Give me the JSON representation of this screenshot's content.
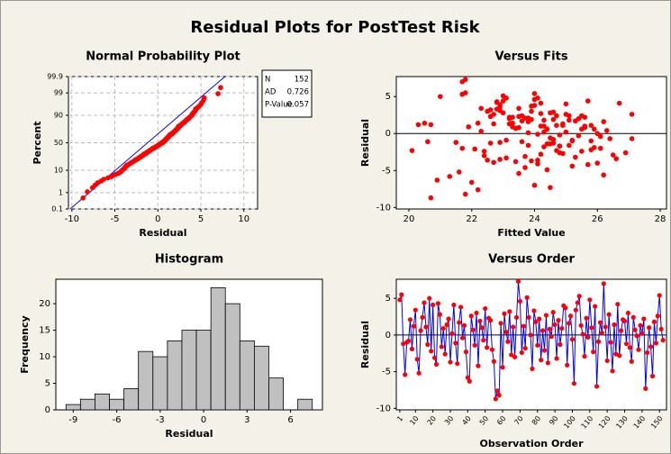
{
  "title": "Residual Plots for PostTest Risk",
  "chart_data": [
    {
      "type": "probability",
      "title": "Normal Probability Plot",
      "xlabel": "Residual",
      "ylabel": "Percent",
      "color": "#ff0000",
      "grid": true,
      "xlim": [
        -10.4,
        11.6
      ],
      "xticks": [
        -10,
        -5,
        0,
        5,
        10
      ],
      "ylim": [
        0.1,
        99.9
      ],
      "yticks": [
        0.1,
        1,
        10,
        50,
        90,
        99,
        99.9
      ],
      "fit_line": {
        "x": [
          -10.2,
          7.8
        ],
        "y": [
          0.1,
          99.9
        ],
        "color": "#0000ff"
      },
      "stats": [
        {
          "label": "N",
          "value": 152
        },
        {
          "label": "AD",
          "value": 0.726
        },
        {
          "label": "P-Value",
          "value": 0.057
        }
      ],
      "x": [
        -8.7,
        -8.2,
        -7.6,
        -7.3,
        -7.0,
        -6.6,
        -6.3,
        -5.8,
        -5.4,
        -5.2,
        -4.9,
        -4.6,
        -4.4,
        -4.3,
        -4.2,
        -4.1,
        -4.0,
        -3.9,
        -3.8,
        -3.8,
        -3.7,
        -3.6,
        -3.6,
        -3.4,
        -3.3,
        -3.2,
        -3.1,
        -3.0,
        -2.9,
        -2.8,
        -2.7,
        -2.6,
        -2.6,
        -2.4,
        -2.3,
        -2.3,
        -2.2,
        -2.1,
        -2.0,
        -2.0,
        -1.9,
        -1.8,
        -1.7,
        -1.7,
        -1.6,
        -1.6,
        -1.4,
        -1.4,
        -1.3,
        -1.3,
        -1.2,
        -1.1,
        -1.1,
        -1.0,
        -0.9,
        -0.9,
        -0.8,
        -0.7,
        -0.7,
        -0.6,
        -0.6,
        -0.4,
        -0.4,
        -0.3,
        -0.2,
        -0.2,
        -0.1,
        0.0,
        0.0,
        0.1,
        0.2,
        0.2,
        0.3,
        0.3,
        0.4,
        0.4,
        0.6,
        0.6,
        0.6,
        0.7,
        0.7,
        0.8,
        0.8,
        0.9,
        0.9,
        0.9,
        1.0,
        1.0,
        1.1,
        1.1,
        1.1,
        1.2,
        1.2,
        1.3,
        1.3,
        1.3,
        1.4,
        1.4,
        1.4,
        1.6,
        1.6,
        1.7,
        1.7,
        1.8,
        1.8,
        1.9,
        1.9,
        2.0,
        2.0,
        2.1,
        2.1,
        2.2,
        2.2,
        2.3,
        2.3,
        2.4,
        2.4,
        2.4,
        2.4,
        2.6,
        2.6,
        2.7,
        2.8,
        2.8,
        2.9,
        3.0,
        3.1,
        3.1,
        3.2,
        3.3,
        3.4,
        3.4,
        3.6,
        3.6,
        3.7,
        3.8,
        3.9,
        4.0,
        4.0,
        4.1,
        4.2,
        4.3,
        4.4,
        4.4,
        4.6,
        4.8,
        5.0,
        5.1,
        5.3,
        5.4,
        7.0,
        7.3
      ],
      "y": [
        0.5,
        1.1,
        1.8,
        2.4,
        3.1,
        3.7,
        4.4,
        5.1,
        5.7,
        6.4,
        7.0,
        7.7,
        8.3,
        9.0,
        9.6,
        10.3,
        11.0,
        11.6,
        12.3,
        12.9,
        13.6,
        14.2,
        14.9,
        15.6,
        16.2,
        16.9,
        17.5,
        18.2,
        18.8,
        19.5,
        20.1,
        20.8,
        21.5,
        22.1,
        22.8,
        23.4,
        24.1,
        24.7,
        25.4,
        26.1,
        26.7,
        27.4,
        28.0,
        28.7,
        29.3,
        30.0,
        30.6,
        31.3,
        32.0,
        32.6,
        33.3,
        33.9,
        34.6,
        35.2,
        35.9,
        36.5,
        37.2,
        37.9,
        38.5,
        39.2,
        39.8,
        40.5,
        41.1,
        41.8,
        42.5,
        43.1,
        43.8,
        44.4,
        45.1,
        45.7,
        46.4,
        47.0,
        47.7,
        48.4,
        49.0,
        49.7,
        50.3,
        51.0,
        51.6,
        52.3,
        53.0,
        53.6,
        54.3,
        54.9,
        55.6,
        56.2,
        56.9,
        57.5,
        58.2,
        58.9,
        59.5,
        60.2,
        60.8,
        61.5,
        62.1,
        62.8,
        63.4,
        64.1,
        64.8,
        65.4,
        66.1,
        66.7,
        67.4,
        68.0,
        68.7,
        69.4,
        70.0,
        70.7,
        71.3,
        72.0,
        72.6,
        73.3,
        73.9,
        74.6,
        75.3,
        75.9,
        76.6,
        77.2,
        77.9,
        78.5,
        79.2,
        79.8,
        80.5,
        81.2,
        81.8,
        82.5,
        83.1,
        83.8,
        84.4,
        85.1,
        85.8,
        86.4,
        87.1,
        87.7,
        88.4,
        89.0,
        89.7,
        90.3,
        91.0,
        91.7,
        92.3,
        93.0,
        93.6,
        94.3,
        94.9,
        95.6,
        96.3,
        96.9,
        97.6,
        98.2,
        98.9,
        99.5
      ]
    },
    {
      "type": "scatter",
      "title": "Versus Fits",
      "xlabel": "Fitted Value",
      "ylabel": "Residual",
      "color": "#ff0000",
      "refline": 0,
      "xlim": [
        19.6,
        28.2
      ],
      "xticks": [
        20,
        22,
        24,
        26,
        28
      ],
      "ylim": [
        -10.2,
        7.7
      ],
      "yticks": [
        -10,
        -5,
        0,
        5
      ],
      "x": [
        24.1,
        21.8,
        22.9,
        23.5,
        25.2,
        24.6,
        23.8,
        25.9,
        20.7,
        22.3,
        23.1,
        21.6,
        24.4,
        25.5,
        23.0,
        24.9,
        22.6,
        21.0,
        25.8,
        24.2,
        23.7,
        26.0,
        22.8,
        24.5,
        25.1,
        23.3,
        24.8,
        22.2,
        25.6,
        23.9,
        24.3,
        26.7,
        23.6,
        22.7,
        25.3,
        24.0,
        26.1,
        23.2,
        24.7,
        21.3,
        20.9,
        25.0,
        23.4,
        24.5,
        22.5,
        25.7,
        23.9,
        24.2,
        26.4,
        22.9,
        24.8,
        23.5,
        25.4,
        21.7,
        24.1,
        20.7,
        22.2,
        21.8,
        23.8,
        25.2,
        24.6,
        26.3,
        23.1,
        22.6,
        24.9,
        25.8,
        22.4,
        23.6,
        21.8,
        24.0,
        25.5,
        20.3,
        24.3,
        23.0,
        24.7,
        26.0,
        23.7,
        22.8,
        25.1,
        24.4,
        23.3,
        26.6,
        25.9,
        22.1,
        24.2,
        23.4,
        25.6,
        24.8,
        22.9,
        20.5,
        25.3,
        23.2,
        24.6,
        21.9,
        25.0,
        23.9,
        24.1,
        26.2,
        22.7,
        24.5,
        22.0,
        23.5,
        25.7,
        21.7,
        24.9,
        23.8,
        26.5,
        22.6,
        25.4,
        23.1,
        24.3,
        20.1,
        22.9,
        24.0,
        25.2,
        23.6,
        22.3,
        21.7,
        24.7,
        22.9,
        23.0,
        25.8,
        24.4,
        23.3,
        26.9,
        22.8,
        24.2,
        25.5,
        23.7,
        24.6,
        21.5,
        23.9,
        24.8,
        22.5,
        25.1,
        23.4,
        24.1,
        26.1,
        22.7,
        25.0,
        23.2,
        24.5,
        22.4,
        25.6,
        23.8,
        26.2,
        24.3,
        20.6,
        27.1,
        24.0,
        23.5,
        27.1
      ],
      "values": [
        4.8,
        5.5,
        -1.2,
        -5.4,
        -1.0,
        -0.8,
        2.1,
        -1.9,
        1.2,
        3.4,
        -3.3,
        -5.2,
        0.6,
        2.4,
        4.4,
        1.1,
        -1.3,
        5.0,
        -2.2,
        4.1,
        -3.1,
        -4.0,
        4.3,
        2.8,
        -1.6,
        0.9,
        -2.6,
        1.4,
        2.2,
        -3.7,
        0.2,
        4.1,
        -1.1,
        -3.9,
        1.7,
        3.8,
        -0.4,
        1.3,
        -2.3,
        -5.8,
        -6.3,
        2.6,
        0.7,
        -1.4,
        3.0,
        -4.2,
        1.9,
        1.0,
        -0.7,
        3.6,
        -1.7,
        2.3,
        2.0,
        -2.0,
        -3.6,
        -8.7,
        -7.6,
        -8.2,
        1.6,
        -4.4,
        2.9,
        0.4,
        -0.9,
        3.2,
        -2.7,
        1.1,
        -3.0,
        2.4,
        7.3,
        4.6,
        -2.4,
        1.2,
        -1.8,
        5.1,
        2.4,
        0.0,
        -4.6,
        3.3,
        1.8,
        -1.4,
        2.2,
        -3.4,
        0.6,
        -2.1,
        2.7,
        -3.8,
        0.8,
        -0.2,
        3.1,
        1.4,
        -3.2,
        2.0,
        -1.3,
        0.9,
        4.0,
        3.7,
        -4.1,
        1.6,
        2.6,
        -0.6,
        -6.6,
        3.4,
        4.4,
        5.3,
        1.3,
        0.1,
        -2.9,
        2.3,
        -0.3,
        4.8,
        1.0,
        -2.3,
        3.9,
        -7.0,
        -0.9,
        1.7,
        0.3,
        7.0,
        1.1,
        -3.5,
        2.8,
        -1.0,
        -4.9,
        1.4,
        -2.6,
        4.2,
        -2.8,
        0.6,
        2.1,
        1.9,
        -1.2,
        3.0,
        -1.7,
        -3.6,
        2.4,
        0.7,
        -0.1,
        -2.0,
        1.3,
        0.2,
        2.2,
        -7.3,
        -2.4,
        1.0,
        -1.6,
        -5.6,
        1.8,
        -1.1,
        2.6,
        5.4,
        0.8,
        -0.7
      ]
    },
    {
      "type": "histogram",
      "title": "Histogram",
      "xlabel": "Residual",
      "ylabel": "Frequency",
      "color": "#c0c0c0",
      "xlim": [
        -10.2,
        8.2
      ],
      "xticks": [
        -9,
        -6,
        -3,
        0,
        3,
        6
      ],
      "ylim": [
        0,
        24.6
      ],
      "yticks": [
        0,
        5,
        10,
        15,
        20
      ],
      "bins": [
        -9.5,
        -8.5,
        -7.5,
        -6.5,
        -5.5,
        -4.5,
        -3.5,
        -2.5,
        -1.5,
        -0.5,
        0.5,
        1.5,
        2.5,
        3.5,
        4.5,
        5.5,
        6.5,
        7.5
      ],
      "counts": [
        1,
        2,
        3,
        2,
        4,
        11,
        10,
        13,
        15,
        15,
        23,
        20,
        13,
        12,
        6,
        0,
        2
      ]
    },
    {
      "type": "line",
      "title": "Versus Order",
      "xlabel": "Observation Order",
      "ylabel": "Residual",
      "color": "#0000ff",
      "marker_color": "#ff0000",
      "refline": 0,
      "xlim": [
        -1,
        154
      ],
      "xticks": [
        1,
        10,
        20,
        30,
        40,
        50,
        60,
        70,
        80,
        90,
        100,
        110,
        120,
        130,
        140,
        150
      ],
      "ylim": [
        -10.2,
        7.6
      ],
      "yticks": [
        -10,
        -5,
        0,
        5
      ],
      "x": [
        1,
        2,
        3,
        4,
        5,
        6,
        7,
        8,
        9,
        10,
        11,
        12,
        13,
        14,
        15,
        16,
        17,
        18,
        19,
        20,
        21,
        22,
        23,
        24,
        25,
        26,
        27,
        28,
        29,
        30,
        31,
        32,
        33,
        34,
        35,
        36,
        37,
        38,
        39,
        40,
        41,
        42,
        43,
        44,
        45,
        46,
        47,
        48,
        49,
        50,
        51,
        52,
        53,
        54,
        55,
        56,
        57,
        58,
        59,
        60,
        61,
        62,
        63,
        64,
        65,
        66,
        67,
        68,
        69,
        70,
        71,
        72,
        73,
        74,
        75,
        76,
        77,
        78,
        79,
        80,
        81,
        82,
        83,
        84,
        85,
        86,
        87,
        88,
        89,
        90,
        91,
        92,
        93,
        94,
        95,
        96,
        97,
        98,
        99,
        100,
        101,
        102,
        103,
        104,
        105,
        106,
        107,
        108,
        109,
        110,
        111,
        112,
        113,
        114,
        115,
        116,
        117,
        118,
        119,
        120,
        121,
        122,
        123,
        124,
        125,
        126,
        127,
        128,
        129,
        130,
        131,
        132,
        133,
        134,
        135,
        136,
        137,
        138,
        139,
        140,
        141,
        142,
        143,
        144,
        145,
        146,
        147,
        148,
        149,
        150,
        151,
        152
      ],
      "values": [
        4.8,
        5.5,
        -1.2,
        -5.4,
        -1.0,
        -0.8,
        2.1,
        -1.9,
        1.2,
        3.4,
        -3.3,
        -5.2,
        0.6,
        2.4,
        4.4,
        1.1,
        -1.3,
        5.0,
        -2.2,
        4.1,
        -3.1,
        -4.0,
        4.3,
        2.8,
        -1.6,
        0.9,
        -2.6,
        1.4,
        2.2,
        -3.7,
        0.2,
        4.1,
        -1.1,
        -3.9,
        1.7,
        3.8,
        -0.4,
        1.3,
        -2.3,
        -5.8,
        -6.3,
        2.6,
        0.7,
        -1.4,
        3.0,
        -4.2,
        1.9,
        1.0,
        -0.7,
        3.6,
        -1.7,
        2.3,
        2.0,
        -2.0,
        -3.6,
        -8.7,
        -7.6,
        -8.2,
        1.6,
        -4.4,
        2.9,
        0.4,
        -0.9,
        3.2,
        -2.7,
        1.1,
        -3.0,
        2.4,
        7.3,
        4.6,
        -2.4,
        1.2,
        -1.8,
        5.1,
        2.4,
        0.0,
        -4.6,
        3.3,
        1.8,
        -1.4,
        2.2,
        -3.4,
        0.6,
        -2.1,
        2.7,
        -3.8,
        0.8,
        -0.2,
        3.1,
        1.4,
        -3.2,
        2.0,
        -1.3,
        0.9,
        4.0,
        3.7,
        -4.1,
        1.6,
        2.6,
        -0.6,
        -6.6,
        3.4,
        4.4,
        5.3,
        1.3,
        0.1,
        -2.9,
        2.3,
        -0.3,
        4.8,
        1.0,
        -2.3,
        3.9,
        -7.0,
        -0.9,
        1.7,
        0.3,
        7.0,
        1.1,
        -3.5,
        2.8,
        -1.0,
        -4.9,
        1.4,
        -2.6,
        4.2,
        -2.8,
        0.6,
        2.1,
        1.9,
        -1.2,
        3.0,
        -1.7,
        -3.6,
        2.4,
        0.7,
        -0.1,
        -2.0,
        1.3,
        0.2,
        2.2,
        -7.3,
        -2.4,
        1.0,
        -1.6,
        -5.6,
        1.8,
        -1.1,
        2.6,
        5.4,
        0.8,
        -0.7
      ]
    }
  ]
}
